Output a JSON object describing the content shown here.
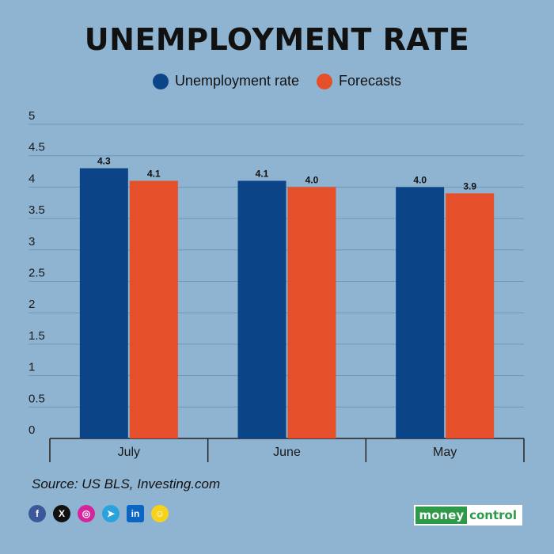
{
  "title": "UNEMPLOYMENT RATE",
  "legend": {
    "series1": "Unemployment rate",
    "series2": "Forecasts"
  },
  "colors": {
    "series1": "#0b4587",
    "series2": "#e5502a",
    "background": "#8fb4d1",
    "grid": "#6f97b5"
  },
  "chart_data": {
    "type": "bar",
    "title": "UNEMPLOYMENT RATE",
    "categories": [
      "July",
      "June",
      "May"
    ],
    "series": [
      {
        "name": "Unemployment rate",
        "values": [
          4.3,
          4.1,
          4.0
        ],
        "labels": [
          "4.3",
          "4.1",
          "4.0"
        ]
      },
      {
        "name": "Forecasts",
        "values": [
          4.1,
          4.0,
          3.9
        ],
        "labels": [
          "4.1",
          "4.0",
          "3.9"
        ]
      }
    ],
    "yticks": [
      "0",
      "0.5",
      "1",
      "1.5",
      "2",
      "2.5",
      "3",
      "3.5",
      "4",
      "4.5",
      "5"
    ],
    "ylim": [
      0,
      5
    ],
    "grid": true,
    "legend_position": "top-center",
    "xlabel": "",
    "ylabel": ""
  },
  "source": "Source: US BLS, Investing.com",
  "socials": [
    "facebook-icon",
    "x-icon",
    "instagram-icon",
    "telegram-icon",
    "linkedin-icon",
    "snapchat-icon"
  ],
  "brand": {
    "part1": "money",
    "part2": "control"
  }
}
